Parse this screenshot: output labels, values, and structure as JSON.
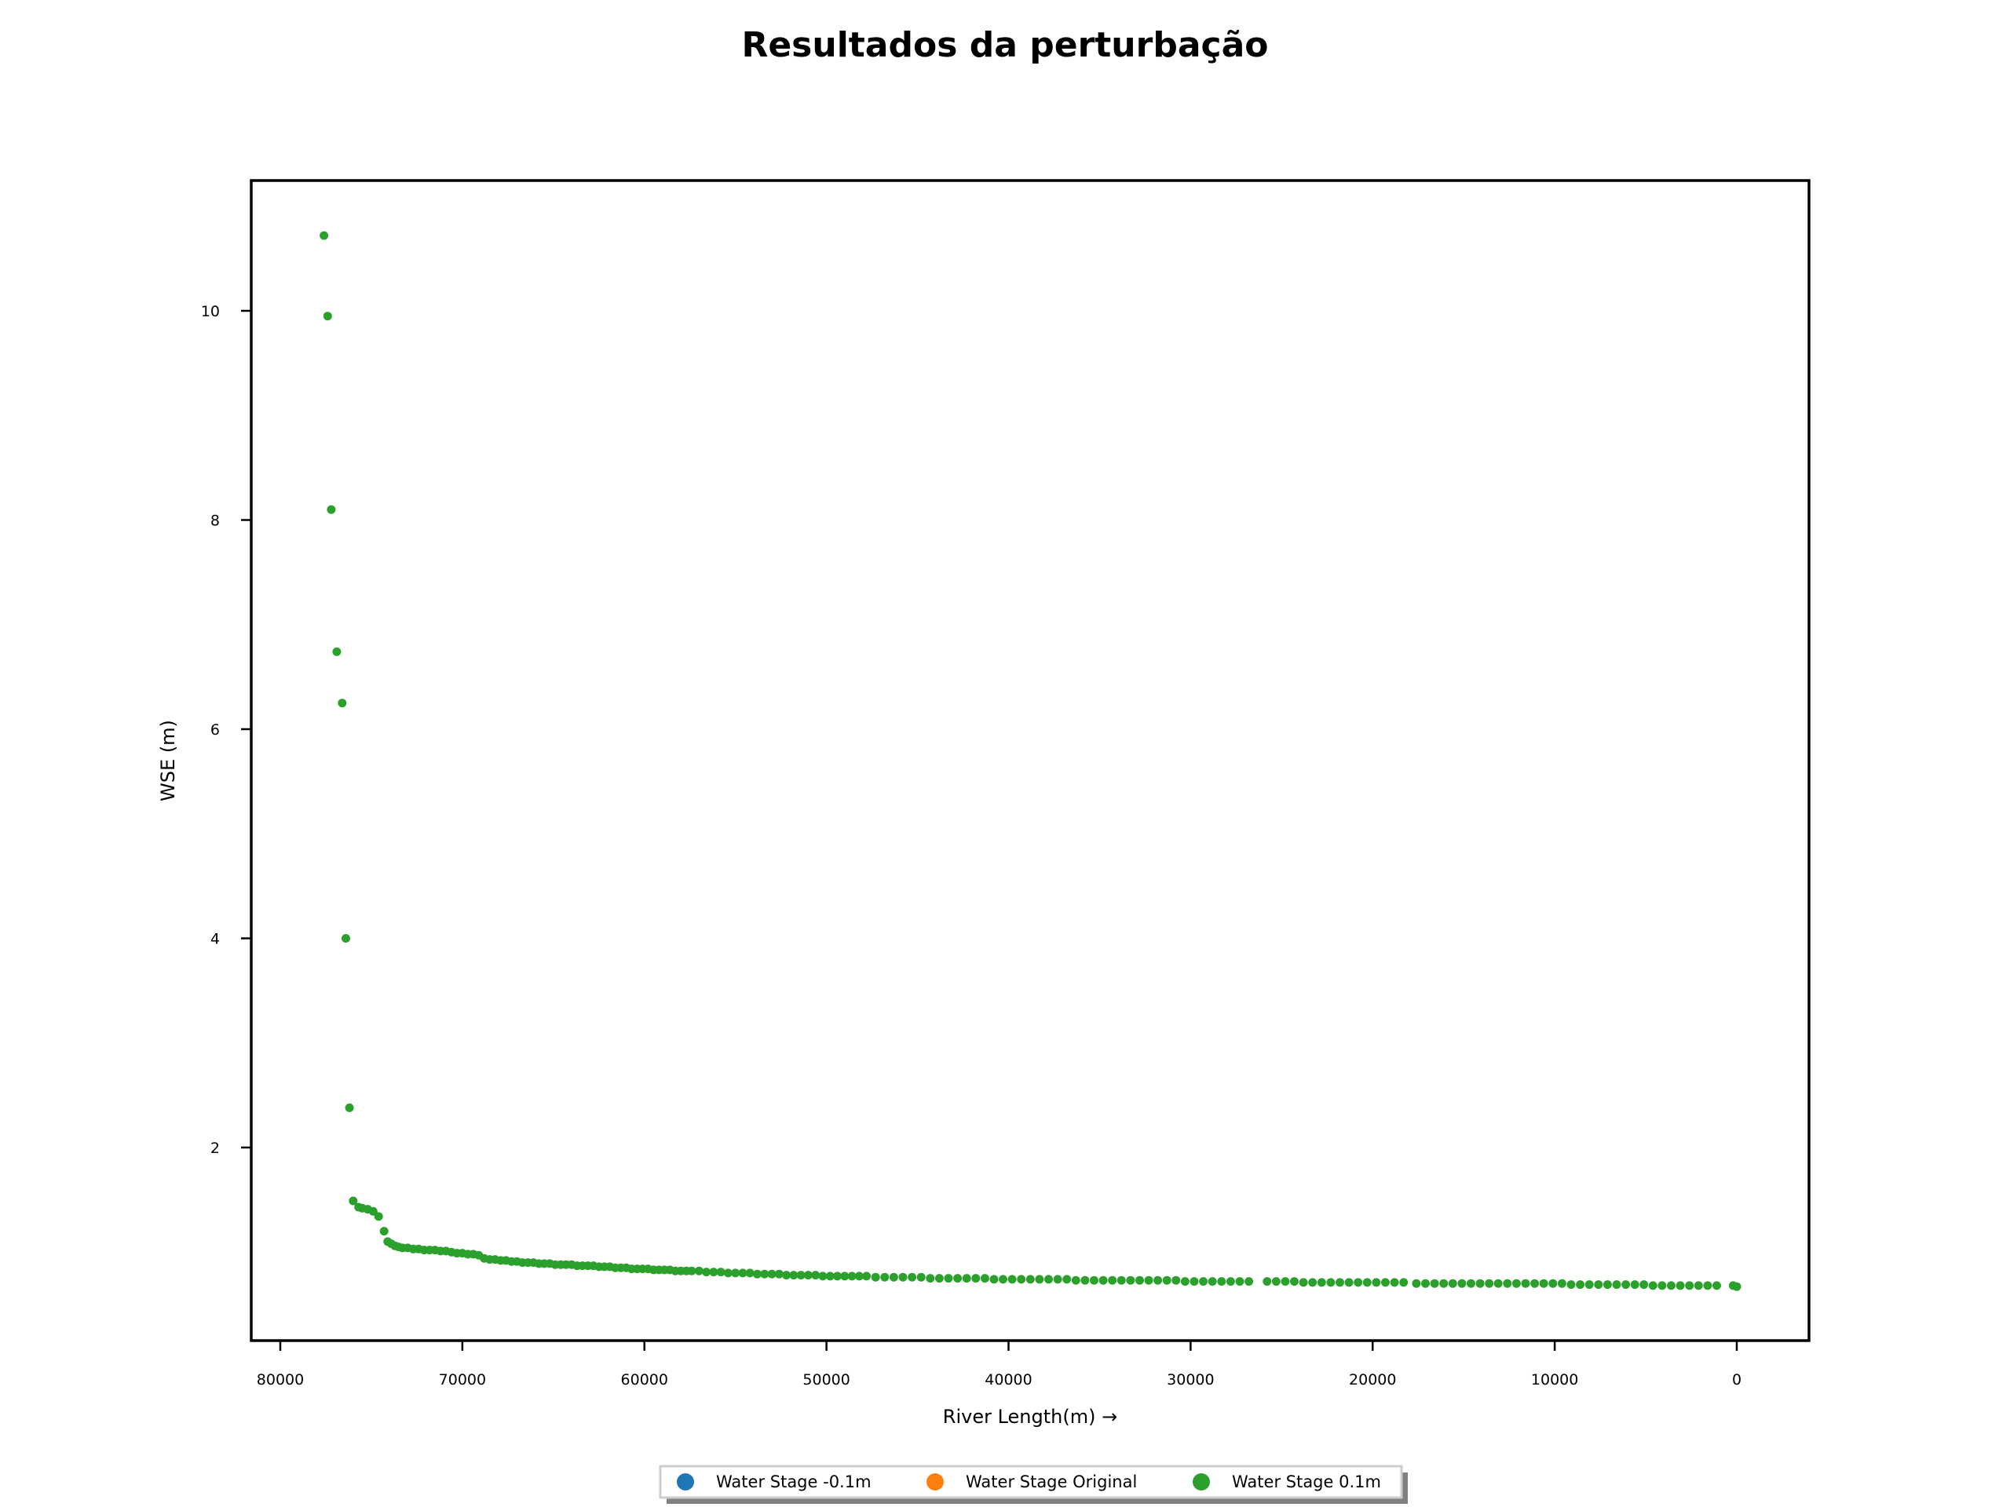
{
  "chart_data": {
    "type": "scatter",
    "title": "Resultados da perturbação",
    "xlabel": "River Length(m) →",
    "ylabel": "WSE (m)",
    "x_inverted": true,
    "xlim": [
      80000,
      0
    ],
    "ylim": [
      0,
      11
    ],
    "x_ticks": [
      80000,
      70000,
      60000,
      50000,
      40000,
      30000,
      20000,
      10000,
      0
    ],
    "y_ticks": [
      2,
      4,
      6,
      8,
      10
    ],
    "x_tick_labels": [
      "80000",
      "70000",
      "60000",
      "50000",
      "40000",
      "30000",
      "20000",
      "10000",
      "0"
    ],
    "y_tick_labels": [
      "2",
      "4",
      "6",
      "8",
      "10"
    ],
    "grid": false,
    "legend_position": "bottom-center",
    "series": [
      {
        "name": "Water Stage -0.1m",
        "color": "#1f77b4",
        "x": [],
        "y": []
      },
      {
        "name": "Water Stage Original",
        "color": "#ff7f0e",
        "x": [],
        "y": []
      },
      {
        "name": "Water Stage 0.1m",
        "color": "#2ca02c",
        "x": [
          77600,
          77400,
          77200,
          76900,
          76600,
          76400,
          76200,
          76000,
          75700,
          75500,
          75200,
          74900,
          74600,
          74300,
          74100,
          73900,
          73700,
          73500,
          73300,
          73000,
          72700,
          72400,
          72100,
          71800,
          71500,
          71200,
          70900,
          70600,
          70300,
          70000,
          69700,
          69400,
          69100,
          68800,
          68500,
          68200,
          67900,
          67600,
          67300,
          67000,
          66700,
          66400,
          66100,
          65800,
          65500,
          65200,
          64900,
          64600,
          64300,
          64000,
          63700,
          63400,
          63100,
          62800,
          62500,
          62200,
          61900,
          61600,
          61300,
          61000,
          60700,
          60400,
          60100,
          59800,
          59500,
          59200,
          58900,
          58600,
          58300,
          58000,
          57700,
          57400,
          57000,
          56600,
          56200,
          55800,
          55400,
          55000,
          54600,
          54200,
          53800,
          53400,
          53000,
          52600,
          52200,
          51800,
          51400,
          51000,
          50600,
          50200,
          49800,
          49400,
          49000,
          48600,
          48200,
          47800,
          47300,
          46800,
          46300,
          45800,
          45300,
          44800,
          44300,
          43800,
          43300,
          42800,
          42300,
          41800,
          41300,
          40800,
          40300,
          39800,
          39300,
          38800,
          38300,
          37800,
          37300,
          36800,
          36300,
          35800,
          35300,
          34800,
          34300,
          33800,
          33300,
          32800,
          32300,
          31800,
          31300,
          30800,
          30300,
          29800,
          29300,
          28800,
          28300,
          27800,
          27300,
          26800,
          25800,
          25300,
          24800,
          24300,
          23800,
          23300,
          22800,
          22300,
          21800,
          21300,
          20800,
          20300,
          19800,
          19300,
          18800,
          18300,
          17600,
          17100,
          16600,
          16100,
          15600,
          15100,
          14600,
          14100,
          13600,
          13100,
          12600,
          12100,
          11600,
          11100,
          10600,
          10100,
          9600,
          9100,
          8600,
          8100,
          7600,
          7100,
          6600,
          6100,
          5600,
          5100,
          4600,
          4100,
          3600,
          3100,
          2600,
          2100,
          1600,
          1100,
          200,
          0
        ],
        "y": [
          10.72,
          9.95,
          8.1,
          6.74,
          6.25,
          4.0,
          2.38,
          1.49,
          1.43,
          1.42,
          1.41,
          1.39,
          1.34,
          1.2,
          1.1,
          1.08,
          1.06,
          1.05,
          1.04,
          1.04,
          1.03,
          1.03,
          1.02,
          1.02,
          1.02,
          1.01,
          1.01,
          1.0,
          0.99,
          0.99,
          0.98,
          0.98,
          0.97,
          0.94,
          0.93,
          0.93,
          0.92,
          0.92,
          0.91,
          0.91,
          0.9,
          0.9,
          0.9,
          0.89,
          0.89,
          0.89,
          0.88,
          0.88,
          0.88,
          0.88,
          0.87,
          0.87,
          0.87,
          0.87,
          0.86,
          0.86,
          0.86,
          0.85,
          0.85,
          0.85,
          0.84,
          0.84,
          0.84,
          0.84,
          0.83,
          0.83,
          0.83,
          0.83,
          0.82,
          0.82,
          0.82,
          0.82,
          0.82,
          0.81,
          0.81,
          0.81,
          0.8,
          0.8,
          0.8,
          0.8,
          0.79,
          0.79,
          0.79,
          0.79,
          0.78,
          0.78,
          0.78,
          0.78,
          0.78,
          0.77,
          0.77,
          0.77,
          0.77,
          0.77,
          0.77,
          0.77,
          0.76,
          0.76,
          0.76,
          0.76,
          0.76,
          0.76,
          0.75,
          0.75,
          0.75,
          0.75,
          0.75,
          0.75,
          0.75,
          0.74,
          0.74,
          0.74,
          0.74,
          0.74,
          0.74,
          0.74,
          0.74,
          0.74,
          0.73,
          0.73,
          0.73,
          0.73,
          0.73,
          0.73,
          0.73,
          0.73,
          0.73,
          0.73,
          0.73,
          0.73,
          0.72,
          0.72,
          0.72,
          0.72,
          0.72,
          0.72,
          0.72,
          0.72,
          0.72,
          0.72,
          0.72,
          0.72,
          0.71,
          0.71,
          0.71,
          0.71,
          0.71,
          0.71,
          0.71,
          0.71,
          0.71,
          0.71,
          0.71,
          0.71,
          0.7,
          0.7,
          0.7,
          0.7,
          0.7,
          0.7,
          0.7,
          0.7,
          0.7,
          0.7,
          0.7,
          0.7,
          0.7,
          0.7,
          0.7,
          0.7,
          0.7,
          0.69,
          0.69,
          0.69,
          0.69,
          0.69,
          0.69,
          0.69,
          0.69,
          0.69,
          0.68,
          0.68,
          0.68,
          0.68,
          0.68,
          0.68,
          0.68,
          0.68,
          0.68,
          0.67
        ]
      }
    ]
  }
}
